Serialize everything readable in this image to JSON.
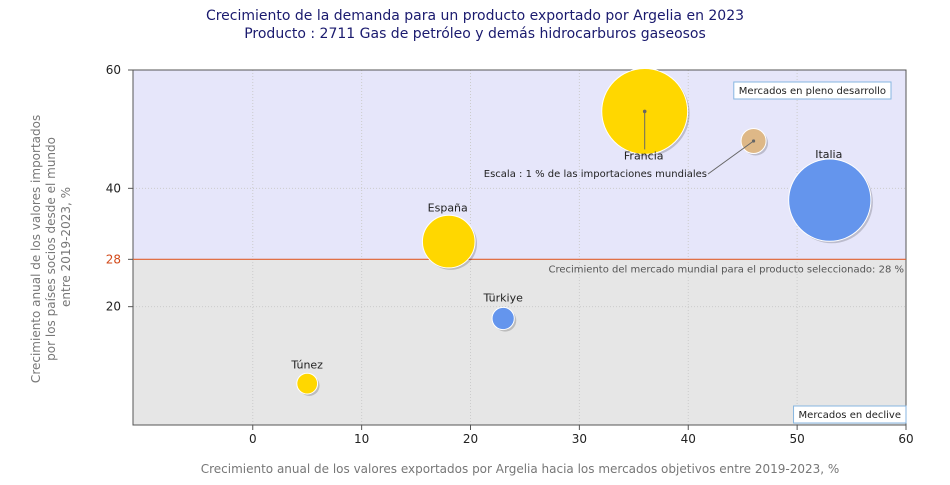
{
  "chart_data": {
    "type": "scatter",
    "title": "Crecimiento de la demanda para un producto exportado por Argelia en 2023",
    "subtitle": "Producto : 2711 Gas de petróleo y demás hidrocarburos gaseosos",
    "xlabel": "Crecimiento anual de los valores exportados por Argelia hacia los mercados objetivos entre 2019-2023, %",
    "ylabel_lines": [
      "Crecimiento anual de los valores importados",
      "por los países socios desde el mundo",
      "entre 2019-2023, %"
    ],
    "xlim": [
      -11,
      60
    ],
    "ylim": [
      0,
      60
    ],
    "x_ticks": [
      0,
      10,
      20,
      30,
      40,
      50,
      60
    ],
    "y_ticks": [
      20,
      40,
      60
    ],
    "reference_line": {
      "y": 28,
      "tick_label": "28",
      "label": "Crecimiento del mercado mundial para el producto seleccionado: 28 %",
      "color": "#e06030"
    },
    "zones": {
      "upper_label": "Mercados en pleno desarrollo",
      "lower_label": "Mercados en declive",
      "upper_color": "#e6e6fa",
      "lower_color": "#e6e6e6"
    },
    "scale_bubble": {
      "x": 46,
      "y": 48,
      "label": "Escala : 1 % de las importaciones mundiales",
      "color": "#deb887"
    },
    "points": [
      {
        "name": "Francia",
        "x": 36,
        "y": 53,
        "size": 12,
        "color": "#ffd700"
      },
      {
        "name": "Italia",
        "x": 53,
        "y": 38,
        "size": 11,
        "color": "#6495ed"
      },
      {
        "name": "España",
        "x": 18,
        "y": 31,
        "size": 4.5,
        "color": "#ffd700"
      },
      {
        "name": "Türkiye",
        "x": 23,
        "y": 18,
        "size": 0.8,
        "color": "#6495ed"
      },
      {
        "name": "Túnez",
        "x": 5,
        "y": 7,
        "size": 0.7,
        "color": "#ffd700"
      }
    ]
  }
}
